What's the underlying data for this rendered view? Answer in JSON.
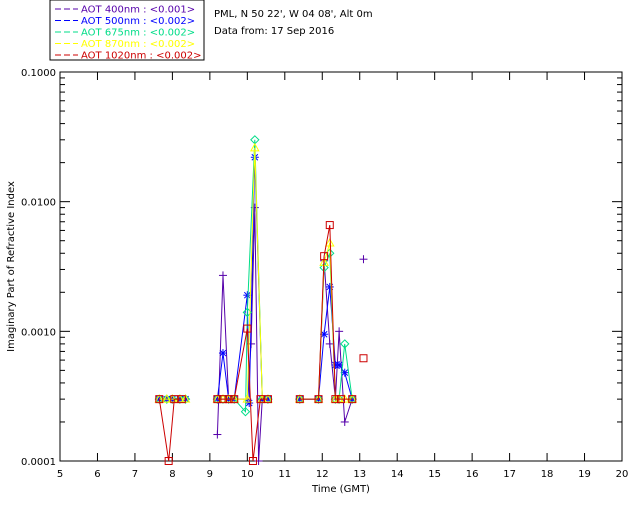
{
  "header": {
    "site": "PML, N 50 22', W 04 08', Alt 0m",
    "date": "Data from: 17 Sep 2016"
  },
  "legend": [
    {
      "label": "AOT  400nm : <0.001>",
      "color": "#5500aa"
    },
    {
      "label": "AOT  500nm : <0.002>",
      "color": "#0000ff"
    },
    {
      "label": "AOT  675nm : <0.002>",
      "color": "#00dd88"
    },
    {
      "label": "AOT  870nm : <0.002>",
      "color": "#ffff00"
    },
    {
      "label": "AOT 1020nm : <0.002>",
      "color": "#cc0000"
    }
  ],
  "chart_data": {
    "type": "line",
    "xlabel": "Time (GMT)",
    "ylabel": "Imaginary Part of Refractive Index",
    "xlim": [
      5,
      20
    ],
    "ylim": [
      0.0001,
      0.1
    ],
    "yscale": "log",
    "x_ticks": [
      "5",
      "6",
      "7",
      "8",
      "9",
      "10",
      "11",
      "12",
      "13",
      "14",
      "15",
      "16",
      "17",
      "18",
      "19",
      "20"
    ],
    "y_ticks": [
      "0.0001",
      "0.0010",
      "0.0100",
      "0.1000"
    ],
    "series": [
      {
        "name": "AOT  400nm : <0.001>",
        "color": "#5500aa",
        "marker": "plus",
        "x": [
          7.65,
          7.85,
          8.0,
          8.2,
          9.2,
          9.35,
          9.5,
          9.65,
          10.0,
          10.1,
          10.2,
          10.3,
          10.4,
          10.55,
          11.4,
          11.9,
          12.05,
          12.2,
          12.35,
          12.45,
          12.6,
          12.8
        ],
        "y": [
          0.0003,
          0.0003,
          0.0003,
          0.0003,
          0.00016,
          0.0027,
          0.0003,
          0.0003,
          0.0003,
          0.0008,
          0.009,
          0.0001,
          0.0003,
          0.0003,
          0.0003,
          0.0003,
          0.0035,
          0.0008,
          0.0003,
          0.001,
          0.0002,
          0.0003
        ],
        "extra_points": [
          [
            13.1,
            0.0036
          ]
        ]
      },
      {
        "name": "AOT  500nm : <0.002>",
        "color": "#0000ff",
        "marker": "star",
        "x": [
          7.65,
          7.85,
          8.0,
          8.2,
          8.35,
          9.2,
          9.35,
          9.5,
          9.65,
          10.0,
          10.05,
          10.2,
          10.4,
          10.55,
          11.4,
          11.9,
          12.05,
          12.2,
          12.35,
          12.45,
          12.6,
          12.8
        ],
        "y": [
          0.0003,
          0.0003,
          0.0003,
          0.0003,
          0.0003,
          0.0003,
          0.00068,
          0.0003,
          0.0003,
          0.0019,
          0.00028,
          0.022,
          0.0003,
          0.0003,
          0.0003,
          0.0003,
          0.00095,
          0.0022,
          0.00055,
          0.00055,
          0.00048,
          0.0003
        ]
      },
      {
        "name": "AOT  675nm : <0.002>",
        "color": "#00dd88",
        "marker": "diamond",
        "x": [
          7.65,
          7.85,
          8.0,
          8.2,
          8.35,
          9.2,
          9.35,
          9.5,
          9.65,
          9.95,
          10.0,
          10.2,
          10.4,
          10.55,
          11.4,
          11.9,
          12.05,
          12.2,
          12.35,
          12.45,
          12.6,
          12.8
        ],
        "y": [
          0.0003,
          0.0003,
          0.0003,
          0.0003,
          0.0003,
          0.0003,
          0.0003,
          0.0003,
          0.0003,
          0.00024,
          0.0014,
          0.03,
          0.0003,
          0.0003,
          0.0003,
          0.0003,
          0.0031,
          0.004,
          0.0003,
          0.0003,
          0.0008,
          0.0003
        ]
      },
      {
        "name": "AOT  870nm : <0.002>",
        "color": "#ffff00",
        "marker": "triangle",
        "x": [
          7.65,
          7.85,
          8.0,
          8.2,
          8.35,
          9.2,
          9.35,
          9.5,
          9.65,
          10.0,
          10.2,
          10.4,
          10.55,
          11.4,
          11.9,
          12.05,
          12.2,
          12.35,
          12.45,
          12.6,
          12.8
        ],
        "y": [
          0.0003,
          0.0003,
          0.0003,
          0.0003,
          0.0003,
          0.0003,
          0.0003,
          0.0003,
          0.0003,
          0.0003,
          0.026,
          0.0003,
          0.0003,
          0.0003,
          0.0003,
          0.0034,
          0.0048,
          0.0003,
          0.0003,
          0.0003,
          0.0003
        ]
      },
      {
        "name": "AOT 1020nm : <0.002>",
        "color": "#cc0000",
        "marker": "square",
        "x": [
          7.65,
          7.9,
          8.05,
          8.25,
          9.2,
          9.35,
          9.5,
          9.65,
          10.0,
          10.15,
          10.35,
          10.55,
          11.4,
          11.9,
          12.05,
          12.2,
          12.35,
          12.5,
          12.8
        ],
        "y": [
          0.0003,
          0.0001,
          0.0003,
          0.0003,
          0.0003,
          0.0003,
          0.0003,
          0.0003,
          0.00105,
          0.0001,
          0.0003,
          0.0003,
          0.0003,
          0.0003,
          0.0038,
          0.0066,
          0.0003,
          0.0003,
          0.0003
        ],
        "extra_points": [
          [
            13.1,
            0.00062
          ]
        ]
      }
    ]
  }
}
